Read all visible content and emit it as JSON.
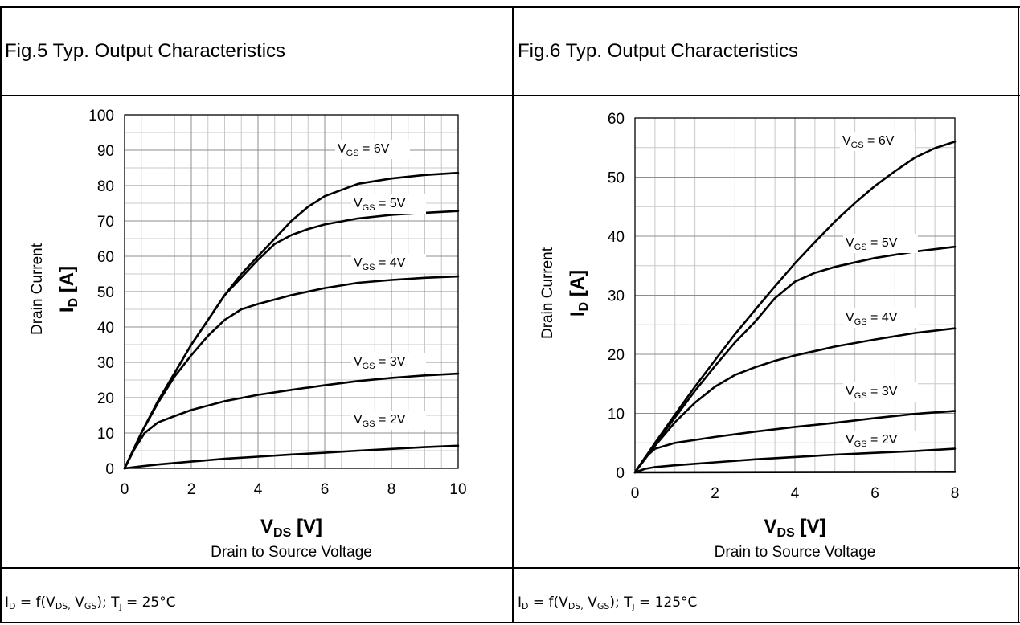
{
  "panels": [
    {
      "title": "Fig.5  Typ. Output Characteristics",
      "condition": {
        "tj": "25°C"
      },
      "chart_data": {
        "type": "line",
        "title": "Fig.5  Typ. Output Characteristics",
        "xlabel": {
          "symbol": "V",
          "sub": "DS",
          "unit": "[V]",
          "caption": "Drain to Source Voltage"
        },
        "ylabel": {
          "caption": "Drain Current",
          "symbol": "I",
          "sub": "D",
          "unit": "[A]"
        },
        "xlim": [
          0,
          10
        ],
        "ylim": [
          0,
          100
        ],
        "xticks": [
          0,
          2,
          4,
          6,
          8,
          10
        ],
        "yticks": [
          0,
          10,
          20,
          30,
          40,
          50,
          60,
          70,
          80,
          90,
          100
        ],
        "grid": true,
        "series": [
          {
            "name": "VGS = 6V",
            "label": {
              "pre": "V",
              "sub": "GS",
              "post": " = 6V"
            },
            "x": [
              0,
              0.5,
              1,
              1.5,
              2,
              2.5,
              3,
              3.5,
              4,
              4.5,
              5,
              5.5,
              6,
              7,
              8,
              9,
              10
            ],
            "y": [
              0,
              10,
              19,
              27,
              35,
              42,
              49,
              55,
              60,
              65,
              70,
              74,
              77,
              80.5,
              82,
              83,
              83.6
            ]
          },
          {
            "name": "VGS = 5V",
            "label": {
              "pre": "V",
              "sub": "GS",
              "post": " = 5V"
            },
            "x": [
              0,
              0.5,
              1,
              1.5,
              2,
              2.5,
              3,
              3.5,
              4,
              4.5,
              5,
              5.5,
              6,
              7,
              8,
              9,
              10
            ],
            "y": [
              0,
              10,
              19,
              27,
              35,
              42,
              49,
              54,
              59,
              63.5,
              66,
              67.7,
              69,
              70.7,
              71.7,
              72.3,
              72.8
            ]
          },
          {
            "name": "VGS = 4V",
            "label": {
              "pre": "V",
              "sub": "GS",
              "post": " = 4V"
            },
            "x": [
              0,
              0.5,
              1,
              1.5,
              2,
              2.5,
              3,
              3.5,
              4,
              5,
              6,
              7,
              8,
              9,
              10
            ],
            "y": [
              0,
              10,
              18.5,
              26,
              32,
              37.5,
              42,
              45,
              46.5,
              49,
              51,
              52.5,
              53.3,
              53.9,
              54.3
            ]
          },
          {
            "name": "VGS = 3V",
            "label": {
              "pre": "V",
              "sub": "GS",
              "post": " = 3V"
            },
            "x": [
              0,
              0.3,
              0.6,
              1,
              1.5,
              2,
              3,
              4,
              5,
              6,
              7,
              8,
              9,
              10
            ],
            "y": [
              0,
              5.5,
              10,
              13,
              14.8,
              16.5,
              19,
              20.8,
              22.2,
              23.5,
              24.7,
              25.6,
              26.3,
              26.8
            ]
          },
          {
            "name": "VGS = 2V",
            "label": {
              "pre": "V",
              "sub": "GS",
              "post": " = 2V"
            },
            "x": [
              0,
              0.5,
              1,
              2,
              3,
              4,
              5,
              6,
              7,
              8,
              9,
              10
            ],
            "y": [
              0,
              0.6,
              1.1,
              1.9,
              2.7,
              3.3,
              3.9,
              4.4,
              5,
              5.5,
              6,
              6.4
            ]
          }
        ]
      }
    },
    {
      "title": "Fig.6  Typ. Output Characteristics",
      "condition": {
        "tj": "125°C"
      },
      "chart_data": {
        "type": "line",
        "title": "Fig.6  Typ. Output Characteristics",
        "xlabel": {
          "symbol": "V",
          "sub": "DS",
          "unit": "[V]",
          "caption": "Drain to Source Voltage"
        },
        "ylabel": {
          "caption": "Drain Current",
          "symbol": "I",
          "sub": "D",
          "unit": "[A]"
        },
        "xlim": [
          0,
          8
        ],
        "ylim": [
          0,
          60
        ],
        "xticks": [
          0,
          2,
          4,
          6,
          8
        ],
        "yticks": [
          0,
          10,
          20,
          30,
          40,
          50,
          60
        ],
        "grid": true,
        "series": [
          {
            "name": "VGS = 6V",
            "label": {
              "pre": "V",
              "sub": "GS",
              "post": " = 6V"
            },
            "x": [
              0,
              0.5,
              1,
              1.5,
              2,
              2.5,
              3,
              3.5,
              4,
              4.5,
              5,
              5.5,
              6,
              6.5,
              7,
              7.5,
              8
            ],
            "y": [
              0,
              5,
              9.8,
              14.5,
              19,
              23.4,
              27.5,
              31.5,
              35.4,
              39,
              42.5,
              45.6,
              48.5,
              51,
              53.3,
              54.9,
              56
            ]
          },
          {
            "name": "VGS = 5V",
            "label": {
              "pre": "V",
              "sub": "GS",
              "post": " = 5V"
            },
            "x": [
              0,
              0.5,
              1,
              1.5,
              2,
              2.5,
              3,
              3.5,
              4,
              4.5,
              5,
              6,
              7,
              8
            ],
            "y": [
              0,
              4.8,
              9.3,
              13.8,
              18,
              22,
              25.5,
              29.5,
              32.3,
              33.8,
              34.8,
              36.3,
              37.4,
              38.2
            ]
          },
          {
            "name": "VGS = 4V",
            "label": {
              "pre": "V",
              "sub": "GS",
              "post": " = 4V"
            },
            "x": [
              0,
              0.5,
              1,
              1.5,
              2,
              2.5,
              3,
              3.5,
              4,
              5,
              6,
              7,
              8
            ],
            "y": [
              0,
              4.5,
              8.5,
              11.8,
              14.5,
              16.5,
              17.8,
              18.9,
              19.8,
              21.3,
              22.5,
              23.6,
              24.4
            ]
          },
          {
            "name": "VGS = 3V",
            "label": {
              "pre": "V",
              "sub": "GS",
              "post": " = 3V"
            },
            "x": [
              0,
              0.25,
              0.5,
              1,
              1.5,
              2,
              3,
              4,
              5,
              6,
              7,
              8
            ],
            "y": [
              0,
              2.5,
              4,
              5,
              5.5,
              6,
              6.9,
              7.7,
              8.4,
              9.2,
              9.9,
              10.4
            ]
          },
          {
            "name": "VGS = 2V",
            "label": {
              "pre": "V",
              "sub": "GS",
              "post": " = 2V"
            },
            "x": [
              0,
              0.25,
              0.5,
              1,
              2,
              3,
              4,
              5,
              6,
              7,
              8
            ],
            "y": [
              0,
              0.6,
              0.9,
              1.2,
              1.7,
              2.2,
              2.6,
              3,
              3.3,
              3.6,
              4
            ]
          },
          {
            "name": "",
            "label": null,
            "x": [
              0,
              8
            ],
            "y": [
              0,
              0.1
            ]
          }
        ]
      }
    }
  ]
}
